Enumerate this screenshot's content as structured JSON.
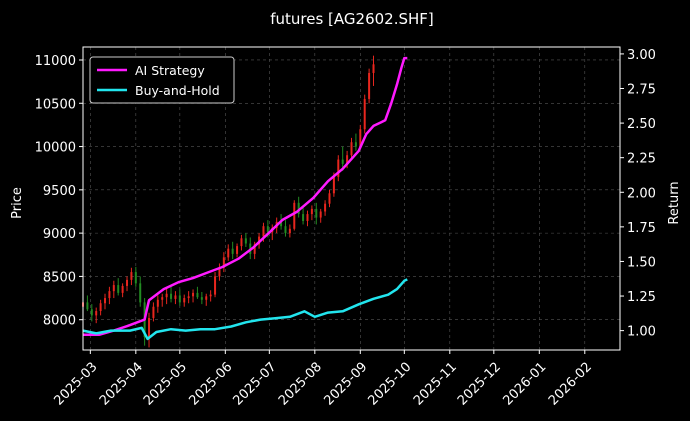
{
  "chart_data": {
    "type": "candlestick_with_return_lines",
    "title": "futures [AG2602.SHF]",
    "ylabel_left": "Price",
    "ylabel_right": "Return",
    "xlabel": "",
    "xlim": [
      "2025-02-24",
      "2026-02-25"
    ],
    "ylim_left": [
      7650,
      11150
    ],
    "ylim_right": [
      0.86,
      3.05
    ],
    "x_ticks": [
      "2025-03",
      "2025-04",
      "2025-05",
      "2025-06",
      "2025-07",
      "2025-08",
      "2025-09",
      "2025-10",
      "2025-11",
      "2025-12",
      "2026-01",
      "2026-02"
    ],
    "y_ticks_left": [
      8000,
      8500,
      9000,
      9500,
      10000,
      10500,
      11000
    ],
    "y_ticks_right": [
      1.0,
      1.25,
      1.5,
      1.75,
      2.0,
      2.25,
      2.5,
      2.75,
      3.0
    ],
    "grid": true,
    "legend": "upper-left",
    "colors": {
      "background": "#000000",
      "up_candle": "#e8261e",
      "down_candle": "#228b22",
      "ai_strategy": "#ff1aff",
      "buy_and_hold": "#22e5ee",
      "grid": "#555555",
      "text": "#ffffff"
    },
    "series": [
      {
        "name": "AI Strategy",
        "axis": "right",
        "points": [
          [
            "2025-02-24",
            0.97
          ],
          [
            "2025-03-07",
            0.97
          ],
          [
            "2025-03-17",
            1.0
          ],
          [
            "2025-03-28",
            1.04
          ],
          [
            "2025-04-07",
            1.08
          ],
          [
            "2025-04-10",
            1.22
          ],
          [
            "2025-04-20",
            1.3
          ],
          [
            "2025-04-30",
            1.35
          ],
          [
            "2025-05-10",
            1.38
          ],
          [
            "2025-05-20",
            1.42
          ],
          [
            "2025-05-30",
            1.46
          ],
          [
            "2025-06-10",
            1.52
          ],
          [
            "2025-06-20",
            1.6
          ],
          [
            "2025-06-30",
            1.7
          ],
          [
            "2025-07-10",
            1.8
          ],
          [
            "2025-07-20",
            1.86
          ],
          [
            "2025-07-31",
            1.96
          ],
          [
            "2025-08-10",
            2.08
          ],
          [
            "2025-08-20",
            2.17
          ],
          [
            "2025-08-31",
            2.3
          ],
          [
            "2025-09-05",
            2.42
          ],
          [
            "2025-09-10",
            2.48
          ],
          [
            "2025-09-18",
            2.52
          ],
          [
            "2025-09-22",
            2.64
          ],
          [
            "2025-09-26",
            2.78
          ],
          [
            "2025-09-29",
            2.9
          ],
          [
            "2025-10-01",
            2.97
          ],
          [
            "2025-10-03",
            2.97
          ]
        ]
      },
      {
        "name": "Buy-and-Hold",
        "axis": "right",
        "points": [
          [
            "2025-02-24",
            1.0
          ],
          [
            "2025-03-05",
            0.98
          ],
          [
            "2025-03-15",
            1.0
          ],
          [
            "2025-03-28",
            1.0
          ],
          [
            "2025-04-05",
            1.02
          ],
          [
            "2025-04-09",
            0.94
          ],
          [
            "2025-04-15",
            0.99
          ],
          [
            "2025-04-25",
            1.01
          ],
          [
            "2025-05-05",
            1.0
          ],
          [
            "2025-05-15",
            1.01
          ],
          [
            "2025-05-25",
            1.01
          ],
          [
            "2025-06-05",
            1.03
          ],
          [
            "2025-06-15",
            1.06
          ],
          [
            "2025-06-25",
            1.08
          ],
          [
            "2025-07-05",
            1.09
          ],
          [
            "2025-07-15",
            1.1
          ],
          [
            "2025-07-25",
            1.14
          ],
          [
            "2025-08-01",
            1.1
          ],
          [
            "2025-08-10",
            1.13
          ],
          [
            "2025-08-20",
            1.14
          ],
          [
            "2025-08-31",
            1.19
          ],
          [
            "2025-09-10",
            1.23
          ],
          [
            "2025-09-20",
            1.26
          ],
          [
            "2025-09-26",
            1.3
          ],
          [
            "2025-10-01",
            1.36
          ],
          [
            "2025-10-03",
            1.37
          ]
        ]
      }
    ],
    "candles": {
      "axis": "left",
      "start_date": "2025-02-24",
      "interval_days": 3,
      "ohlc": [
        [
          8150,
          8260,
          8080,
          8200
        ],
        [
          8200,
          8280,
          8100,
          8120
        ],
        [
          8120,
          8180,
          7980,
          8050
        ],
        [
          8050,
          8140,
          7960,
          8100
        ],
        [
          8100,
          8230,
          8050,
          8190
        ],
        [
          8190,
          8300,
          8120,
          8250
        ],
        [
          8250,
          8380,
          8180,
          8330
        ],
        [
          8330,
          8450,
          8250,
          8400
        ],
        [
          8400,
          8480,
          8280,
          8310
        ],
        [
          8310,
          8420,
          8260,
          8390
        ],
        [
          8390,
          8500,
          8330,
          8460
        ],
        [
          8460,
          8600,
          8400,
          8550
        ],
        [
          8550,
          8610,
          8380,
          8420
        ],
        [
          8420,
          8500,
          8150,
          8200
        ],
        [
          8200,
          8250,
          7700,
          7800
        ],
        [
          7800,
          8080,
          7680,
          8020
        ],
        [
          8020,
          8200,
          7980,
          8150
        ],
        [
          8150,
          8280,
          8080,
          8230
        ],
        [
          8230,
          8300,
          8150,
          8260
        ],
        [
          8260,
          8360,
          8180,
          8300
        ],
        [
          8300,
          8380,
          8200,
          8240
        ],
        [
          8240,
          8330,
          8180,
          8280
        ],
        [
          8280,
          8350,
          8160,
          8200
        ],
        [
          8200,
          8290,
          8150,
          8250
        ],
        [
          8250,
          8330,
          8190,
          8270
        ],
        [
          8270,
          8350,
          8200,
          8310
        ],
        [
          8310,
          8380,
          8240,
          8260
        ],
        [
          8260,
          8320,
          8180,
          8230
        ],
        [
          8230,
          8300,
          8160,
          8270
        ],
        [
          8270,
          8340,
          8210,
          8290
        ],
        [
          8290,
          8550,
          8260,
          8500
        ],
        [
          8500,
          8650,
          8450,
          8600
        ],
        [
          8600,
          8780,
          8550,
          8720
        ],
        [
          8720,
          8870,
          8680,
          8820
        ],
        [
          8820,
          8900,
          8700,
          8760
        ],
        [
          8760,
          8880,
          8720,
          8850
        ],
        [
          8850,
          8980,
          8800,
          8940
        ],
        [
          8940,
          9000,
          8840,
          8880
        ],
        [
          8880,
          8950,
          8700,
          8760
        ],
        [
          8760,
          8900,
          8700,
          8870
        ],
        [
          8870,
          9000,
          8820,
          8960
        ],
        [
          8960,
          9120,
          8900,
          9080
        ],
        [
          9080,
          9150,
          8950,
          9010
        ],
        [
          9010,
          9100,
          8920,
          9060
        ],
        [
          9060,
          9180,
          9000,
          9130
        ],
        [
          9130,
          9220,
          9040,
          9080
        ],
        [
          9080,
          9150,
          8960,
          9000
        ],
        [
          9000,
          9100,
          8950,
          9050
        ],
        [
          9050,
          9380,
          9030,
          9350
        ],
        [
          9350,
          9420,
          9180,
          9220
        ],
        [
          9220,
          9300,
          9100,
          9140
        ],
        [
          9140,
          9260,
          9080,
          9220
        ],
        [
          9220,
          9320,
          9150,
          9280
        ],
        [
          9280,
          9350,
          9100,
          9180
        ],
        [
          9180,
          9280,
          9120,
          9250
        ],
        [
          9250,
          9380,
          9200,
          9340
        ],
        [
          9340,
          9500,
          9300,
          9460
        ],
        [
          9460,
          9700,
          9420,
          9650
        ],
        [
          9650,
          9900,
          9600,
          9850
        ],
        [
          9850,
          10000,
          9720,
          9800
        ],
        [
          9800,
          9950,
          9750,
          9900
        ],
        [
          9900,
          10100,
          9850,
          10050
        ],
        [
          10050,
          10150,
          9950,
          10000
        ],
        [
          10000,
          10250,
          9980,
          10200
        ],
        [
          10200,
          10600,
          10150,
          10550
        ],
        [
          10550,
          10900,
          10500,
          10850
        ],
        [
          10850,
          11050,
          10700,
          10950
        ]
      ]
    }
  }
}
